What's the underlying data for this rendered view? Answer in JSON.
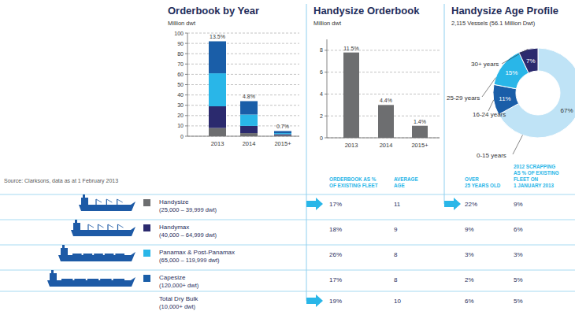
{
  "chart_data": [
    {
      "type": "bar",
      "stacked": true,
      "title": "Orderbook by Year",
      "y_label": "Million dwt",
      "categories": [
        "2013",
        "2014",
        "2015+"
      ],
      "series": [
        {
          "color": "#6d6e70",
          "values": [
            8,
            3,
            1
          ]
        },
        {
          "color": "#2b2a6e",
          "values": [
            21,
            7,
            1
          ]
        },
        {
          "color": "#29b6e8",
          "values": [
            32,
            11,
            1
          ]
        },
        {
          "color": "#1a5ea8",
          "values": [
            31,
            13,
            2
          ]
        }
      ],
      "annotations": [
        "13.5%",
        "4.8%",
        "0.7%"
      ],
      "ylim": [
        0,
        100
      ],
      "yticks": [
        0,
        10,
        20,
        30,
        40,
        50,
        60,
        70,
        80,
        90,
        100
      ],
      "grid": true
    },
    {
      "type": "bar",
      "title": "Handysize Orderbook",
      "y_label": "Million dwt",
      "categories": [
        "2013",
        "2014",
        "2015+"
      ],
      "values": [
        7.8,
        3,
        1.1
      ],
      "color": "#6d6e70",
      "annotations": [
        "11.5%",
        "4.4%",
        "1.4%"
      ],
      "ylim": [
        0,
        9
      ],
      "yticks": [
        0,
        2,
        4,
        6,
        8
      ],
      "grid": true
    },
    {
      "type": "pie",
      "title": "Handysize Age Profile",
      "subtitle": "2,115 Vessels (56.1 Million Dwt)",
      "categories": [
        "0-15 years",
        "16-24 years",
        "25-29 years",
        "30+ years"
      ],
      "values": [
        67,
        11,
        15,
        7
      ],
      "value_labels": [
        "67%",
        "11%",
        "15%",
        "7%"
      ],
      "colors": [
        "#bfe3f6",
        "#1a5ea8",
        "#29b6e8",
        "#2b2a6e"
      ],
      "data_labels": true
    }
  ],
  "source": "Source: Clarksons, data as at 1 February 2013",
  "table": {
    "columns": [
      [
        "ORDERBOOK AS %",
        "OF EXISTING FLEET"
      ],
      [
        "AVERAGE",
        "AGE"
      ],
      [
        "OVER",
        "25 YEARS OLD"
      ],
      [
        "2012 SCRAPPING",
        "AS % OF EXISTING",
        "FLEET ON",
        "1 JANUARY 2013"
      ]
    ],
    "rows": [
      {
        "name": "Handysize",
        "size": "(25,000 – 39,999 dwt)",
        "color": "#6d6e70",
        "cells": [
          "17%",
          "11",
          "22%",
          "9%"
        ]
      },
      {
        "name": "Handymax",
        "size": "(40,000 – 64,999 dwt)",
        "color": "#2b2a6e",
        "cells": [
          "18%",
          "9",
          "9%",
          "6%"
        ]
      },
      {
        "name": "Panamax & Post-Panamax",
        "size": "(65,000 – 119,999 dwt)",
        "color": "#29b6e8",
        "cells": [
          "26%",
          "8",
          "3%",
          "3%"
        ]
      },
      {
        "name": "Capesize",
        "size": "(120,000+ dwt)",
        "color": "#1a5ea8",
        "cells": [
          "17%",
          "8",
          "2%",
          "5%"
        ]
      },
      {
        "name": "Total Dry Bulk",
        "size": "(10,000+ dwt)",
        "cells": [
          "19%",
          "10",
          "6%",
          "5%"
        ]
      }
    ]
  }
}
